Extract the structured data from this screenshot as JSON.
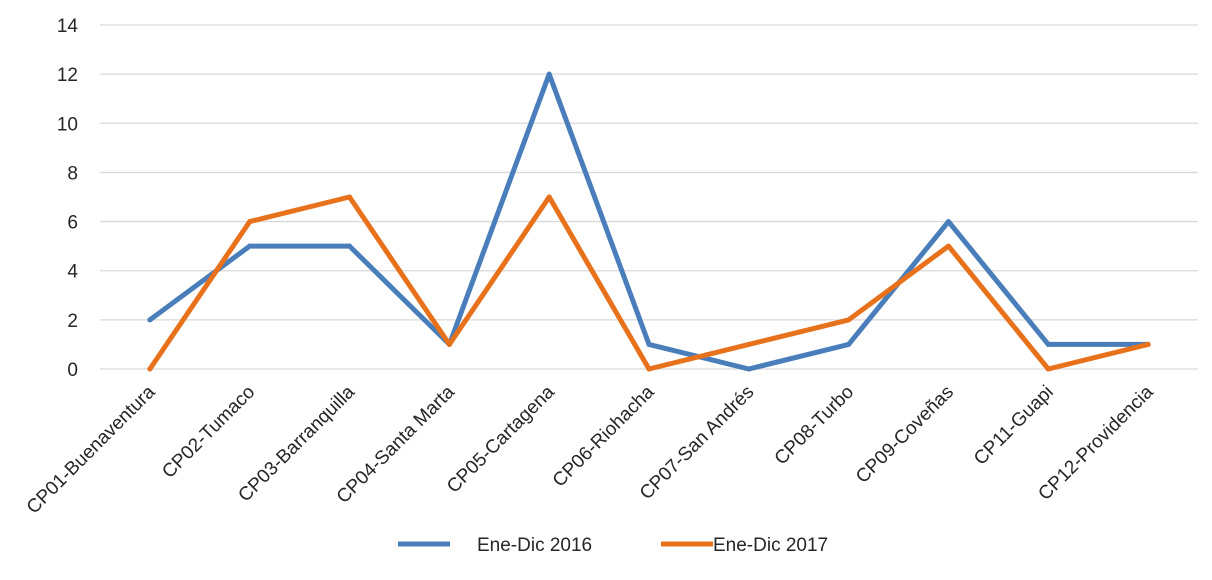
{
  "chart_data": {
    "type": "line",
    "title": "",
    "xlabel": "",
    "ylabel": "",
    "ylim": [
      0,
      14
    ],
    "yticks": [
      0,
      2,
      4,
      6,
      8,
      10,
      12,
      14
    ],
    "grid": true,
    "legend_position": "bottom",
    "categories": [
      "CP01-Buenaventura",
      "CP02-Tumaco",
      "CP03-Barranquilla",
      "CP04-Santa Marta",
      "CP05-Cartagena",
      "CP06-Riohacha",
      "CP07-San Andrés",
      "CP08-Turbo",
      "CP09-Coveñas",
      "CP11-Guapi",
      "CP12-Providencia"
    ],
    "series": [
      {
        "name": "Ene-Dic 2016",
        "color": "#4a7ebb",
        "values": [
          2,
          5,
          5,
          1,
          12,
          1,
          0,
          1,
          6,
          1,
          1
        ]
      },
      {
        "name": "Ene-Dic 2017",
        "color": "#e8711c",
        "values": [
          0,
          6,
          7,
          1,
          7,
          0,
          1,
          2,
          5,
          0,
          1
        ]
      }
    ]
  }
}
